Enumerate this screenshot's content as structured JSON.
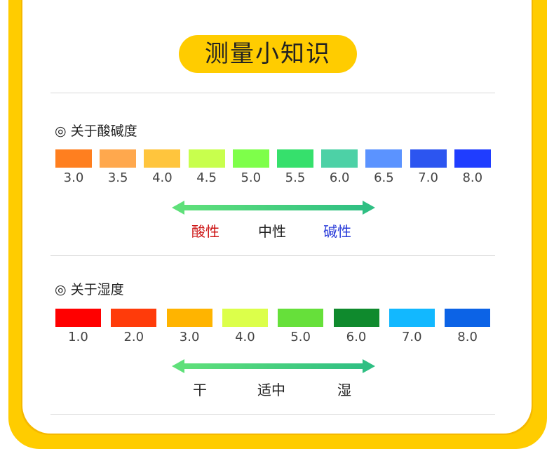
{
  "title": "测量小知识",
  "sections": [
    {
      "heading": "◎ 关于酸碱度",
      "swatches": [
        {
          "value": "3.0",
          "color": "#ff7f1f"
        },
        {
          "value": "3.5",
          "color": "#ffa84d"
        },
        {
          "value": "4.0",
          "color": "#ffc53d"
        },
        {
          "value": "4.5",
          "color": "#c8ff4d"
        },
        {
          "value": "5.0",
          "color": "#7eff4a"
        },
        {
          "value": "5.5",
          "color": "#36e06c"
        },
        {
          "value": "6.0",
          "color": "#4dd1a6"
        },
        {
          "value": "6.5",
          "color": "#5b93ff"
        },
        {
          "value": "7.0",
          "color": "#2c55f0"
        },
        {
          "value": "8.0",
          "color": "#1f3dff"
        }
      ],
      "labels": [
        {
          "text": "酸性",
          "color": "#cc1111"
        },
        {
          "text": "中性",
          "color": "#222222"
        },
        {
          "text": "碱性",
          "color": "#2a3cd9"
        }
      ]
    },
    {
      "heading": "◎ 关于湿度",
      "swatches": [
        {
          "value": "1.0",
          "color": "#ff0000"
        },
        {
          "value": "2.0",
          "color": "#ff3b0a"
        },
        {
          "value": "3.0",
          "color": "#ffb400"
        },
        {
          "value": "4.0",
          "color": "#dcff4a"
        },
        {
          "value": "5.0",
          "color": "#66e03a"
        },
        {
          "value": "6.0",
          "color": "#0f8a2d"
        },
        {
          "value": "7.0",
          "color": "#12b8ff"
        },
        {
          "value": "8.0",
          "color": "#0c63e6"
        }
      ],
      "labels": [
        {
          "text": "干",
          "color": "#222222"
        },
        {
          "text": "适中",
          "color": "#222222"
        },
        {
          "text": "湿",
          "color": "#222222"
        }
      ]
    }
  ]
}
